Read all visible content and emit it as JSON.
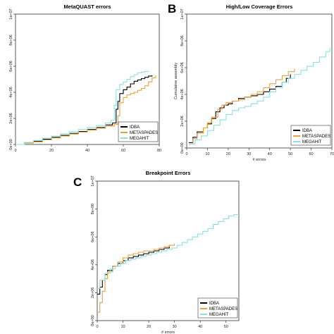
{
  "chart_data": [
    {
      "type": "line",
      "panel": "",
      "title": "MetaQUAST errors",
      "xlabel": "",
      "ylabel": "",
      "xlim": [
        0,
        80
      ],
      "ylim": [
        0,
        10000000
      ],
      "xticks": [
        0,
        20,
        40,
        60,
        80
      ],
      "yticks": [
        0,
        2000000,
        4000000,
        6000000,
        8000000,
        10000000
      ],
      "xtick_labels": [
        "0",
        "20",
        "40",
        "60",
        "80"
      ],
      "ytick_labels": [
        "0e+00",
        "2e+06",
        "4e+06",
        "6e+06",
        "8e+06",
        "1e+07"
      ],
      "legend": [
        "IDBA",
        "METASPADES",
        "MEGAHIT"
      ],
      "legend_position": "bottom-right",
      "series": [
        {
          "name": "IDBA",
          "color": "#000000",
          "x": [
            0,
            5,
            10,
            15,
            20,
            25,
            30,
            35,
            40,
            45,
            50,
            54,
            56,
            57,
            58,
            60,
            62,
            64,
            66,
            68,
            70,
            72,
            74,
            76
          ],
          "y": [
            0,
            120000,
            250000,
            400000,
            550000,
            700000,
            850000,
            1000000,
            1150000,
            1300000,
            1500000,
            1650000,
            2700000,
            3300000,
            3900000,
            4200000,
            4400000,
            4650000,
            4850000,
            4950000,
            5050000,
            5150000,
            5250000,
            5300000
          ]
        },
        {
          "name": "METASPADES",
          "color": "#e8a33c",
          "x": [
            0,
            5,
            10,
            15,
            20,
            25,
            30,
            35,
            40,
            45,
            50,
            55,
            57,
            58,
            60,
            62,
            64,
            66,
            68,
            70,
            72,
            74,
            76,
            78
          ],
          "y": [
            0,
            100000,
            200000,
            350000,
            500000,
            650000,
            800000,
            950000,
            1100000,
            1250000,
            1400000,
            1550000,
            2200000,
            3200000,
            3600000,
            3800000,
            3900000,
            4000000,
            4150000,
            4300000,
            4500000,
            4800000,
            5100000,
            5300000
          ]
        },
        {
          "name": "MEGAHIT",
          "color": "#8ee0e0",
          "x": [
            0,
            5,
            10,
            15,
            20,
            25,
            30,
            35,
            40,
            45,
            50,
            53,
            55,
            56,
            58,
            60,
            62,
            64,
            66,
            68,
            70,
            72,
            74
          ],
          "y": [
            0,
            150000,
            300000,
            480000,
            650000,
            820000,
            980000,
            1150000,
            1300000,
            1450000,
            1650000,
            1850000,
            3000000,
            4200000,
            4600000,
            4800000,
            5000000,
            5200000,
            5350000,
            5500000,
            5550000,
            5600000,
            5650000
          ]
        }
      ]
    },
    {
      "type": "line",
      "panel": "B",
      "title": "High/Low Coverage Errors",
      "xlabel": "# errors",
      "ylabel": "Cumulative assembly",
      "xlim": [
        0,
        70
      ],
      "ylim": [
        0,
        10000000
      ],
      "xticks": [
        0,
        10,
        20,
        30,
        40,
        50,
        60,
        70
      ],
      "yticks": [
        0,
        2000000,
        4000000,
        6000000,
        8000000,
        10000000
      ],
      "xtick_labels": [
        "0",
        "10",
        "20",
        "30",
        "40",
        "50",
        "60",
        "70"
      ],
      "ytick_labels": [
        "0e+00",
        "2e+06",
        "4e+06",
        "6e+06",
        "8e+06",
        "1e+07"
      ],
      "legend": [
        "IDBA",
        "METASPADES",
        "MEGAHIT"
      ],
      "legend_position": "bottom-right",
      "series": [
        {
          "name": "IDBA",
          "color": "#000000",
          "x": [
            1,
            3,
            5,
            8,
            10,
            12,
            14,
            16,
            18,
            20,
            22,
            25,
            28,
            31,
            34,
            37,
            40,
            43,
            46,
            48,
            50
          ],
          "y": [
            400000,
            800000,
            1200000,
            1500000,
            1800000,
            2200000,
            2700000,
            3000000,
            3200000,
            3300000,
            3500000,
            3700000,
            3800000,
            3900000,
            4000000,
            4200000,
            4400000,
            4600000,
            4900000,
            5200000,
            5500000
          ]
        },
        {
          "name": "METASPADES",
          "color": "#e8a33c",
          "x": [
            1,
            3,
            5,
            8,
            10,
            12,
            15,
            17,
            19,
            22,
            25,
            28,
            31,
            34,
            37,
            40,
            43,
            46,
            49,
            52
          ],
          "y": [
            300000,
            700000,
            1100000,
            1500000,
            1900000,
            2300000,
            2900000,
            3200000,
            3400000,
            3500000,
            3600000,
            3800000,
            4000000,
            4200000,
            4500000,
            4800000,
            5100000,
            5400000,
            5700000,
            5900000
          ]
        },
        {
          "name": "MEGAHIT",
          "color": "#8ee0e0",
          "x": [
            1,
            4,
            7,
            10,
            13,
            16,
            19,
            22,
            25,
            28,
            31,
            34,
            37,
            40,
            43,
            46,
            49,
            52,
            55,
            58,
            61,
            64,
            67,
            69
          ],
          "y": [
            300000,
            600000,
            900000,
            1300000,
            1700000,
            2100000,
            2500000,
            2800000,
            3000000,
            3100000,
            3300000,
            3500000,
            3800000,
            4200000,
            4500000,
            4900000,
            5200000,
            5500000,
            5800000,
            6100000,
            6400000,
            6800000,
            7200000,
            7500000
          ]
        }
      ]
    },
    {
      "type": "line",
      "panel": "C",
      "title": "Breakpoint Errors",
      "xlabel": "# errors",
      "ylabel": "",
      "xlim": [
        0,
        55
      ],
      "ylim": [
        0,
        10000000
      ],
      "xticks": [
        0,
        10,
        20,
        30,
        40,
        50
      ],
      "yticks": [
        0,
        2000000,
        4000000,
        6000000,
        8000000,
        10000000
      ],
      "xtick_labels": [
        "0",
        "10",
        "20",
        "30",
        "40",
        "50"
      ],
      "ytick_labels": [
        "0e+00",
        "2e+06",
        "4e+06",
        "6e+06",
        "8e+06",
        "1e+07"
      ],
      "legend": [
        "IDBA",
        "METASPADES",
        "MEGAHIT"
      ],
      "legend_position": "bottom-right",
      "series": [
        {
          "name": "IDBA",
          "color": "#000000",
          "x": [
            0,
            1,
            2,
            3,
            4,
            6,
            8,
            10,
            12,
            14,
            16,
            18,
            20,
            22,
            24,
            26,
            28
          ],
          "y": [
            1900000,
            2400000,
            2900000,
            3300000,
            3600000,
            3900000,
            4100000,
            4300000,
            4500000,
            4600000,
            4700000,
            4800000,
            4900000,
            5000000,
            5100000,
            5200000,
            5400000
          ]
        },
        {
          "name": "METASPADES",
          "color": "#e8a33c",
          "x": [
            0,
            1,
            2,
            3,
            4,
            6,
            8,
            10,
            12,
            14,
            16,
            18,
            20,
            22,
            24,
            26,
            28,
            30
          ],
          "y": [
            600000,
            1300000,
            2100000,
            3000000,
            3500000,
            3900000,
            4200000,
            4500000,
            4700000,
            4800000,
            4900000,
            5000000,
            5000000,
            5100000,
            5200000,
            5300000,
            5400000,
            5500000
          ]
        },
        {
          "name": "MEGAHIT",
          "color": "#8ee0e0",
          "x": [
            0,
            1,
            3,
            5,
            7,
            9,
            11,
            13,
            15,
            17,
            19,
            21,
            23,
            25,
            27,
            29,
            31,
            33,
            35,
            37,
            39,
            41,
            43,
            45,
            47,
            49,
            51,
            53,
            55
          ],
          "y": [
            2300000,
            2900000,
            3400000,
            3700000,
            3900000,
            4100000,
            4300000,
            4400000,
            4500000,
            4600000,
            4700000,
            4800000,
            4900000,
            5000000,
            5100000,
            5200000,
            5400000,
            5600000,
            5800000,
            6000000,
            6200000,
            6400000,
            6600000,
            6900000,
            7100000,
            7300000,
            7500000,
            7600000,
            7600000
          ]
        }
      ]
    }
  ]
}
